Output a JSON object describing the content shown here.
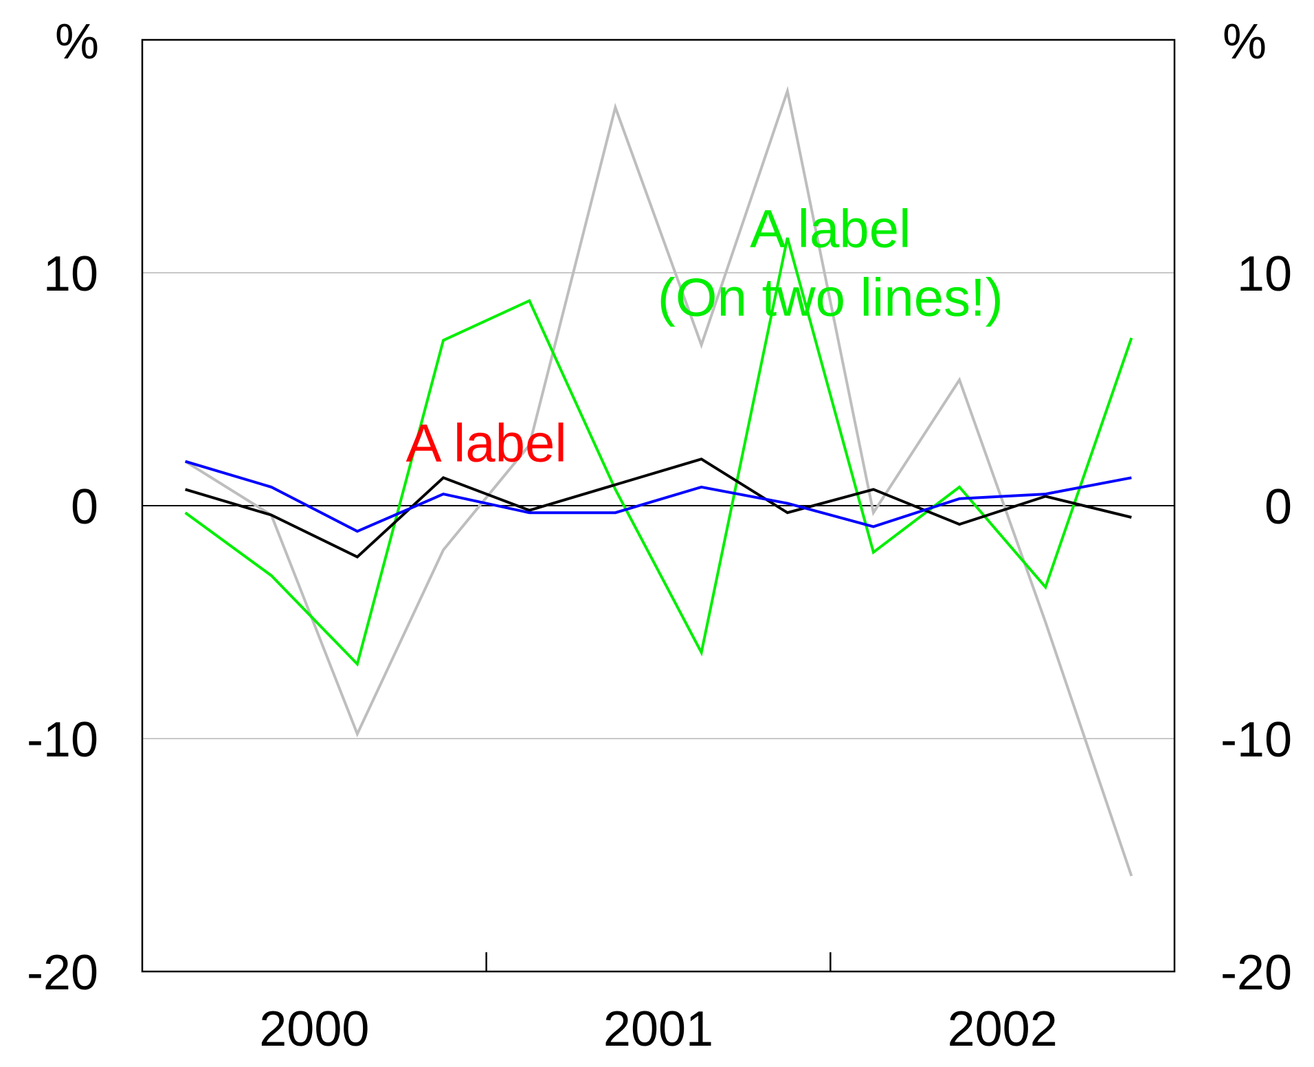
{
  "chart_data": {
    "type": "line",
    "title": "",
    "xlabel": "",
    "ylabel": "",
    "y_unit_left": "%",
    "y_unit_right": "%",
    "ylim": [
      -20,
      20
    ],
    "yticks": [
      -20,
      -10,
      0,
      10
    ],
    "ytick_labels": [
      "-20",
      "-10",
      "0",
      "10"
    ],
    "xlim": [
      -0.5,
      11.5
    ],
    "year_labels": [
      {
        "label": "2000",
        "center": 1.5
      },
      {
        "label": "2001",
        "center": 5.5
      },
      {
        "label": "2002",
        "center": 9.5
      }
    ],
    "year_dividers": [
      3.5,
      7.5
    ],
    "grid": true,
    "zero_line": true,
    "x": [
      0,
      1,
      2,
      3,
      4,
      5,
      6,
      7,
      8,
      9,
      10,
      11
    ],
    "series": [
      {
        "color": "#bebebe",
        "values": [
          1.9,
          -0.4,
          -9.8,
          -1.9,
          2.6,
          17.1,
          6.9,
          17.8,
          -0.3,
          5.4,
          -5.0,
          -15.9
        ]
      },
      {
        "color": "#00ee00",
        "values": [
          -0.3,
          -3.0,
          -6.8,
          7.1,
          8.8,
          0.7,
          -6.3,
          11.5,
          -2.0,
          0.8,
          -3.5,
          7.2
        ]
      },
      {
        "color": "#000000",
        "values": [
          0.7,
          -0.4,
          -2.2,
          1.2,
          -0.2,
          0.9,
          2.0,
          -0.3,
          0.7,
          -0.8,
          0.4,
          -0.5
        ]
      },
      {
        "color": "#0000ff",
        "values": [
          1.9,
          0.8,
          -1.1,
          0.5,
          -0.3,
          -0.3,
          0.8,
          0.1,
          -0.9,
          0.3,
          0.5,
          1.2
        ]
      }
    ],
    "annotations": [
      {
        "text": "A label",
        "color": "#ff0000",
        "x": 3.5,
        "y": 1.9
      },
      {
        "lines": [
          "A label",
          "(On two lines!)"
        ],
        "color": "#00ee00",
        "x": 7.5,
        "y": 11.1
      }
    ]
  }
}
